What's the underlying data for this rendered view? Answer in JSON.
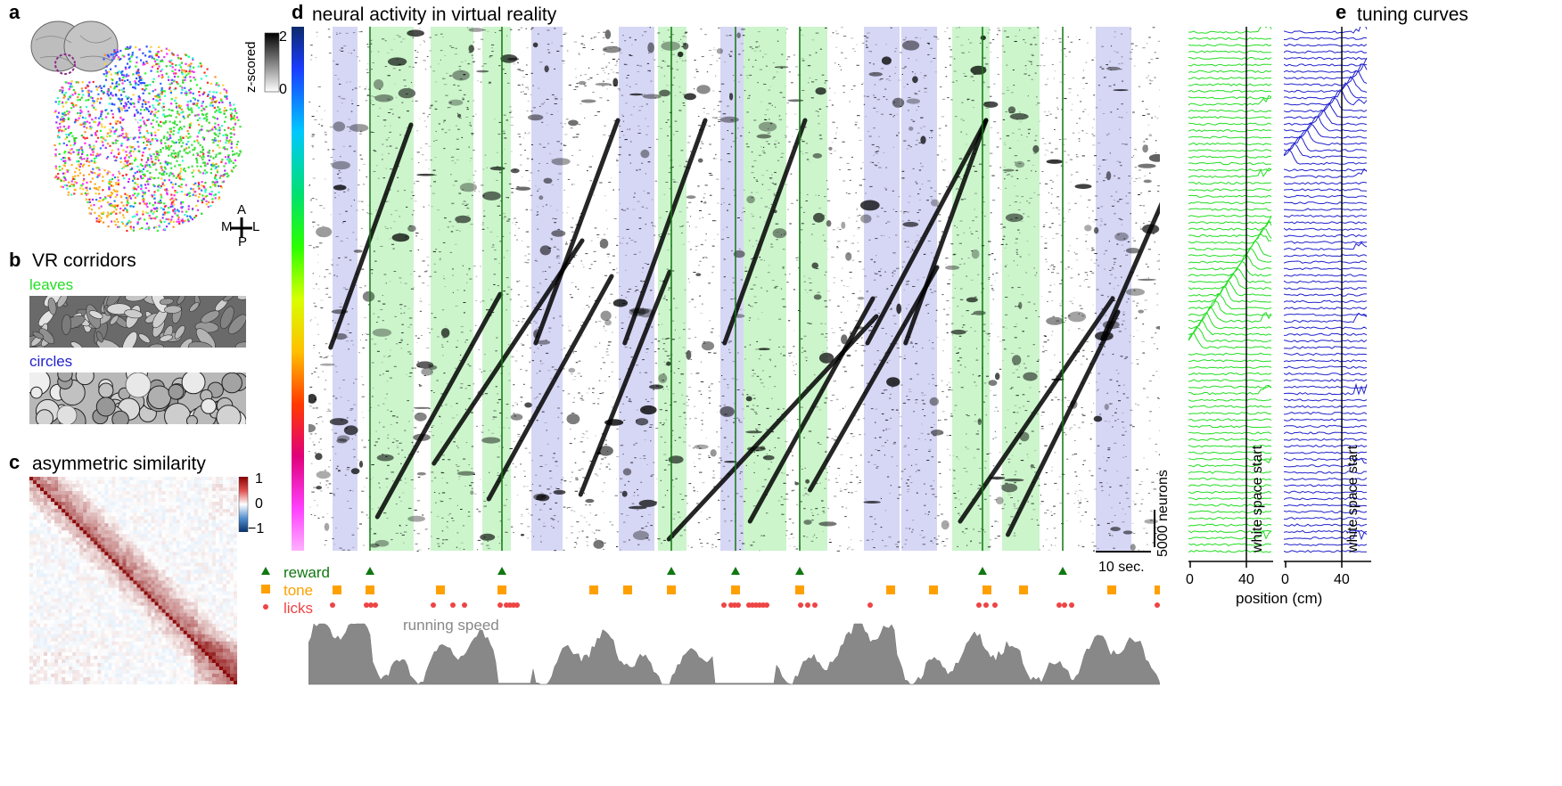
{
  "panels": {
    "a": {
      "label": "a",
      "compass": {
        "anterior": "A",
        "posterior": "P",
        "medial": "M",
        "lateral": "L"
      }
    },
    "b": {
      "label": "b",
      "title": "VR corridors",
      "corridors": [
        {
          "name": "leaves",
          "color": "#22dd22"
        },
        {
          "name": "circles",
          "color": "#2222cc"
        }
      ]
    },
    "c": {
      "label": "c",
      "title": "asymmetric similarity",
      "colorbar": {
        "max": "1",
        "mid": "0",
        "min": "−1"
      }
    },
    "d": {
      "label": "d",
      "title": "neural activity in virtual reality",
      "colorbar_label": "z-scored",
      "colorbar_max": "2",
      "colorbar_min": "0",
      "scale_neurons": "5000 neurons",
      "scale_time": "10 sec.",
      "legend": {
        "reward": "reward",
        "tone": "tone",
        "licks": "licks"
      },
      "running_speed": "running speed",
      "colors": {
        "reward": "#117711",
        "tone": "#ffa000",
        "licks": "#ee4444",
        "speed": "#888888",
        "leaves_band": "#ccf5cc",
        "circles_band": "#d6d6f5"
      }
    },
    "e": {
      "label": "e",
      "title": "tuning curves",
      "marker_label": "white space start",
      "xlabel": "position (cm)",
      "xticks": [
        "0",
        "40",
        "0",
        "40"
      ],
      "colors": {
        "leaves": "#22dd22",
        "circles": "#2222cc"
      }
    }
  }
}
